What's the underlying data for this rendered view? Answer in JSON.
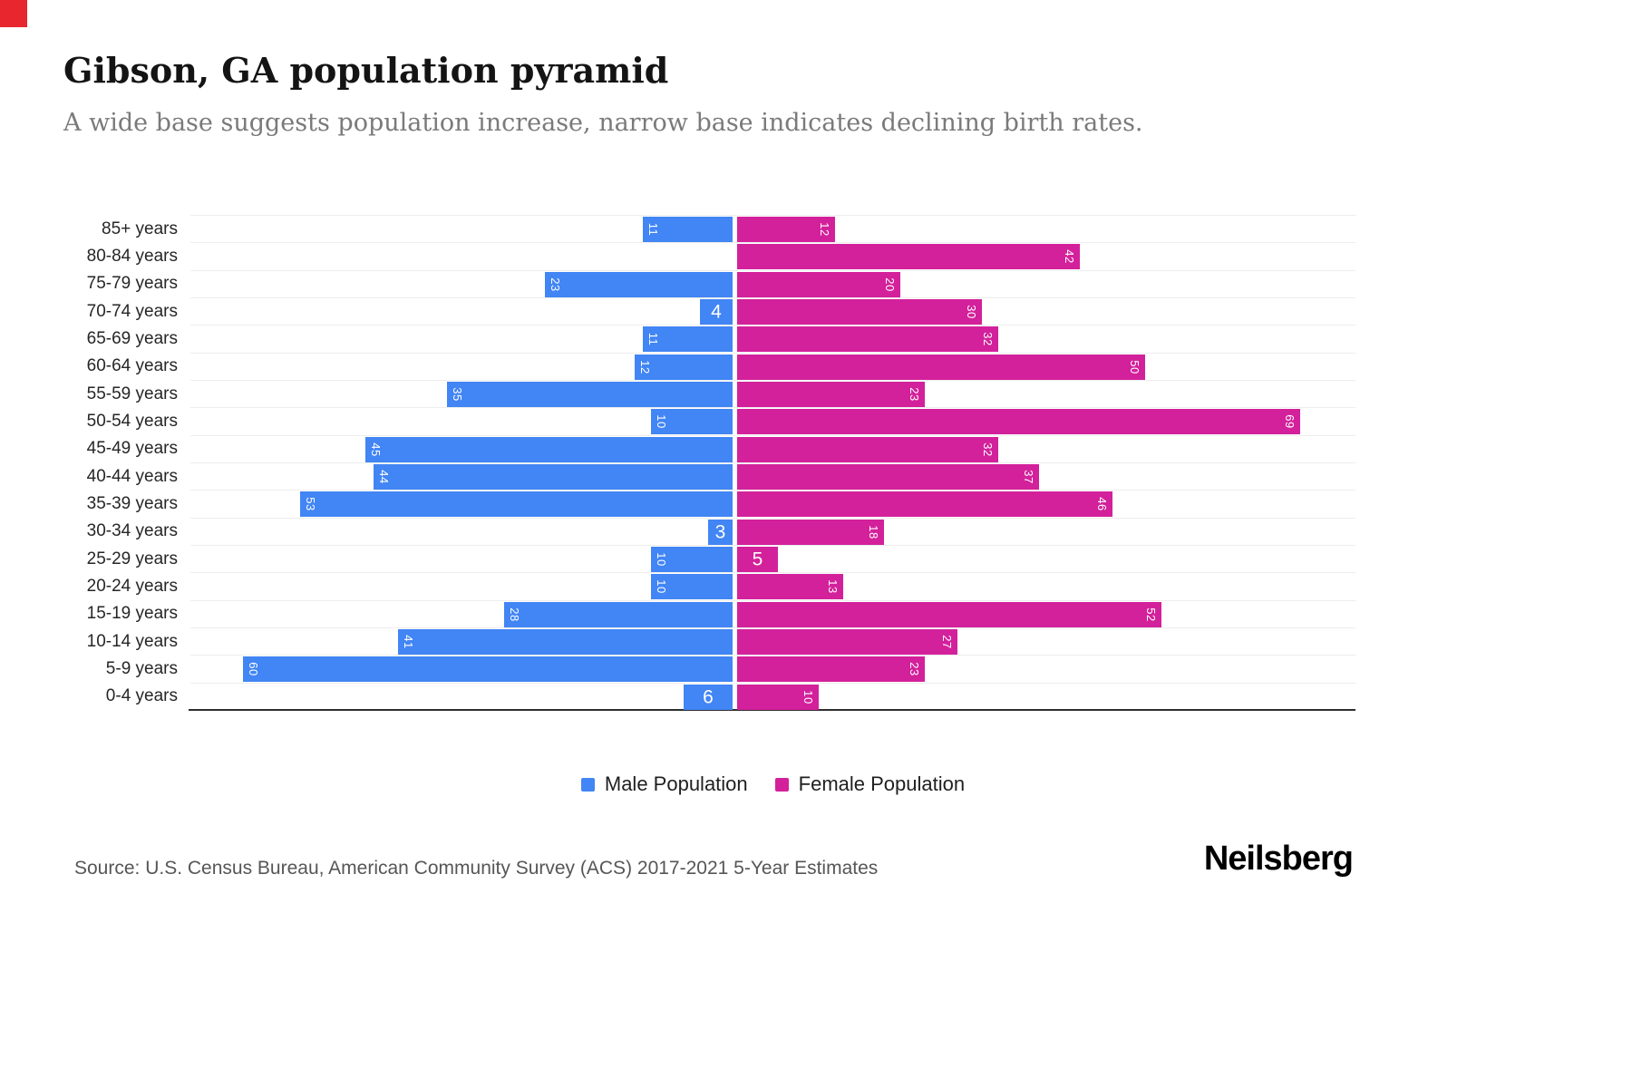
{
  "page": {
    "title": "Gibson, GA population pyramid",
    "subtitle": "A wide base suggests population increase, narrow base indicates declining birth rates.",
    "source": "Source: U.S. Census Bureau, American Community Survey (ACS) 2017-2021 5-Year Estimates",
    "brand": "Neilsberg"
  },
  "colors": {
    "male": "#4285F4",
    "female": "#D3219B",
    "corner_accent": "#E8262D",
    "grid": "#EDEDED",
    "axis": "#2E2E2E"
  },
  "legend": [
    {
      "label": "Male Population",
      "color_key": "male"
    },
    {
      "label": "Female Population",
      "color_key": "female"
    }
  ],
  "chart_data": {
    "type": "bar",
    "variant": "population-pyramid",
    "orientation": "horizontal",
    "categories": [
      "85+ years",
      "80-84 years",
      "75-79 years",
      "70-74 years",
      "65-69 years",
      "60-64 years",
      "55-59 years",
      "50-54 years",
      "45-49 years",
      "40-44 years",
      "35-39 years",
      "30-34 years",
      "25-29 years",
      "20-24 years",
      "15-19 years",
      "10-14 years",
      "5-9 years",
      "0-4 years"
    ],
    "series": [
      {
        "name": "Male Population",
        "side": "left",
        "values": [
          11,
          0,
          23,
          4,
          11,
          12,
          35,
          10,
          45,
          44,
          53,
          3,
          10,
          10,
          28,
          41,
          60,
          6
        ]
      },
      {
        "name": "Female Population",
        "side": "right",
        "values": [
          12,
          42,
          20,
          30,
          32,
          50,
          23,
          69,
          32,
          37,
          46,
          18,
          5,
          13,
          52,
          27,
          23,
          10
        ]
      }
    ],
    "xlim": [
      0,
      70
    ],
    "grid": true,
    "legend_position": "bottom",
    "value_labels": "inside-end"
  }
}
